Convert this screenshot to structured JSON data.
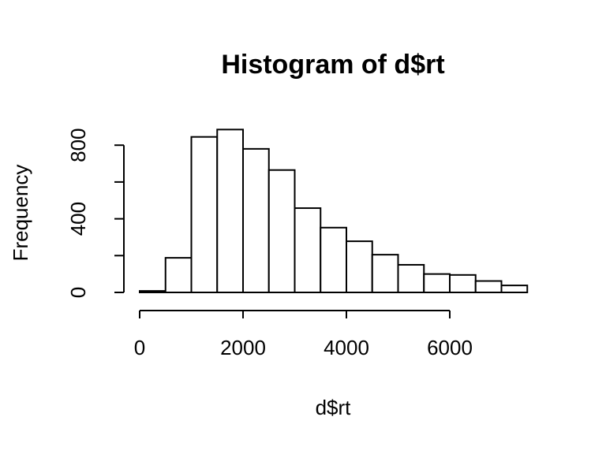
{
  "chart_data": {
    "type": "bar",
    "title": "Histogram of d$rt",
    "xlabel": "d$rt",
    "ylabel": "Frequency",
    "bin_edges": [
      0,
      500,
      1000,
      1500,
      2000,
      2500,
      3000,
      3500,
      4000,
      4500,
      5000,
      5500,
      6000,
      6500,
      7000,
      7500
    ],
    "values": [
      8,
      188,
      845,
      885,
      780,
      665,
      458,
      352,
      278,
      205,
      150,
      100,
      95,
      62,
      38
    ],
    "xlim": [
      0,
      7500
    ],
    "ylim": [
      0,
      885
    ],
    "x_ticks": [
      0,
      2000,
      4000,
      6000
    ],
    "x_tick_labels": [
      "0",
      "2000",
      "4000",
      "6000"
    ],
    "y_ticks": [
      0,
      200,
      400,
      600,
      800
    ],
    "y_tick_labels": [
      "0",
      "",
      "400",
      "",
      "800"
    ],
    "grid": false,
    "bar_fill": "#ffffff",
    "bar_stroke": "#000000"
  }
}
